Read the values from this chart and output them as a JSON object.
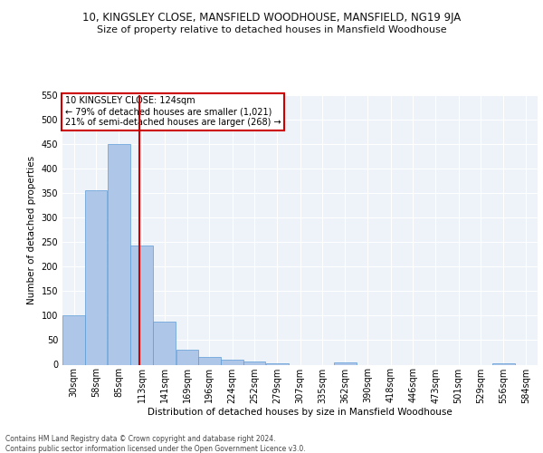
{
  "title_line1": "10, KINGSLEY CLOSE, MANSFIELD WOODHOUSE, MANSFIELD, NG19 9JA",
  "title_line2": "Size of property relative to detached houses in Mansfield Woodhouse",
  "xlabel": "Distribution of detached houses by size in Mansfield Woodhouse",
  "ylabel": "Number of detached properties",
  "footer_line1": "Contains HM Land Registry data © Crown copyright and database right 2024.",
  "footer_line2": "Contains public sector information licensed under the Open Government Licence v3.0.",
  "annotation_line1": "10 KINGSLEY CLOSE: 124sqm",
  "annotation_line2": "← 79% of detached houses are smaller (1,021)",
  "annotation_line3": "21% of semi-detached houses are larger (268) →",
  "property_size": 124,
  "bar_labels": [
    "30sqm",
    "58sqm",
    "85sqm",
    "113sqm",
    "141sqm",
    "169sqm",
    "196sqm",
    "224sqm",
    "252sqm",
    "279sqm",
    "307sqm",
    "335sqm",
    "362sqm",
    "390sqm",
    "418sqm",
    "446sqm",
    "473sqm",
    "501sqm",
    "529sqm",
    "556sqm",
    "584sqm"
  ],
  "bar_values": [
    100,
    355,
    450,
    243,
    87,
    30,
    15,
    10,
    7,
    3,
    0,
    0,
    5,
    0,
    0,
    0,
    0,
    0,
    0,
    3,
    0
  ],
  "bar_edges": [
    30,
    58,
    85,
    113,
    141,
    169,
    196,
    224,
    252,
    279,
    307,
    335,
    362,
    390,
    418,
    446,
    473,
    501,
    529,
    556,
    584,
    612
  ],
  "bar_color": "#aec6e8",
  "bar_edge_color": "#5b9bd5",
  "vline_x": 124,
  "vline_color": "#cc0000",
  "ylim": [
    0,
    550
  ],
  "yticks": [
    0,
    50,
    100,
    150,
    200,
    250,
    300,
    350,
    400,
    450,
    500,
    550
  ],
  "bg_color": "#eef2f9",
  "grid_color": "#ffffff",
  "annotation_box_color": "#ffffff",
  "annotation_box_edge": "#cc0000",
  "title1_fontsize": 8.5,
  "title2_fontsize": 8.0,
  "footer_fontsize": 5.5,
  "ylabel_fontsize": 7.5,
  "xlabel_fontsize": 7.5,
  "tick_fontsize": 7.0,
  "annot_fontsize": 7.0
}
